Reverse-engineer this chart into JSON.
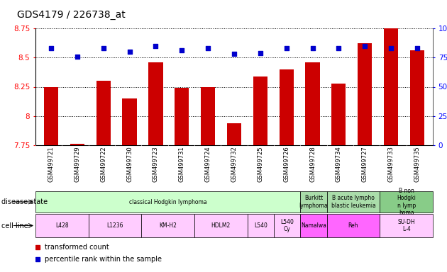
{
  "title": "GDS4179 / 226738_at",
  "samples": [
    "GSM499721",
    "GSM499729",
    "GSM499722",
    "GSM499730",
    "GSM499723",
    "GSM499731",
    "GSM499724",
    "GSM499732",
    "GSM499725",
    "GSM499726",
    "GSM499728",
    "GSM499734",
    "GSM499727",
    "GSM499733",
    "GSM499735"
  ],
  "bar_values": [
    8.25,
    7.76,
    8.3,
    8.15,
    8.46,
    8.24,
    8.25,
    7.94,
    8.34,
    8.4,
    8.46,
    8.28,
    8.62,
    8.75,
    8.56
  ],
  "dot_values": [
    83,
    76,
    83,
    80,
    85,
    81,
    83,
    78,
    79,
    83,
    83,
    83,
    85,
    83,
    83
  ],
  "ylim_left": [
    7.75,
    8.75
  ],
  "ylim_right": [
    0,
    100
  ],
  "yticks_left": [
    7.75,
    8.0,
    8.25,
    8.5,
    8.75
  ],
  "yticks_right": [
    0,
    25,
    50,
    75,
    100
  ],
  "bar_color": "#cc0000",
  "dot_color": "#0000cc",
  "disease_state_groups": [
    {
      "label": "classical Hodgkin lymphoma",
      "start": 0,
      "end": 10,
      "color": "#ccffcc"
    },
    {
      "label": "Burkitt\nlymphoma",
      "start": 10,
      "end": 11,
      "color": "#aaddaa"
    },
    {
      "label": "B acute lympho\nblastic leukemia",
      "start": 11,
      "end": 13,
      "color": "#aaddaa"
    },
    {
      "label": "B non\nHodgki\nn lymp\nhoma",
      "start": 13,
      "end": 15,
      "color": "#88cc88"
    }
  ],
  "cell_line_groups": [
    {
      "label": "L428",
      "start": 0,
      "end": 2,
      "color": "#ffccff"
    },
    {
      "label": "L1236",
      "start": 2,
      "end": 4,
      "color": "#ffccff"
    },
    {
      "label": "KM-H2",
      "start": 4,
      "end": 6,
      "color": "#ffccff"
    },
    {
      "label": "HDLM2",
      "start": 6,
      "end": 8,
      "color": "#ffccff"
    },
    {
      "label": "L540",
      "start": 8,
      "end": 9,
      "color": "#ffccff"
    },
    {
      "label": "L540\nCy",
      "start": 9,
      "end": 10,
      "color": "#ffccff"
    },
    {
      "label": "Namalwa",
      "start": 10,
      "end": 11,
      "color": "#ff66ff"
    },
    {
      "label": "Reh",
      "start": 11,
      "end": 13,
      "color": "#ff66ff"
    },
    {
      "label": "SU-DH\nL-4",
      "start": 13,
      "end": 15,
      "color": "#ffccff"
    }
  ],
  "legend_items": [
    {
      "label": "transformed count",
      "color": "#cc0000"
    },
    {
      "label": "percentile rank within the sample",
      "color": "#0000cc"
    }
  ],
  "xlabel_disease": "disease state",
  "xlabel_cell": "cell line",
  "bar_width": 0.55,
  "dot_size": 20,
  "fig_width": 6.3,
  "fig_height": 3.84,
  "dpi": 100
}
